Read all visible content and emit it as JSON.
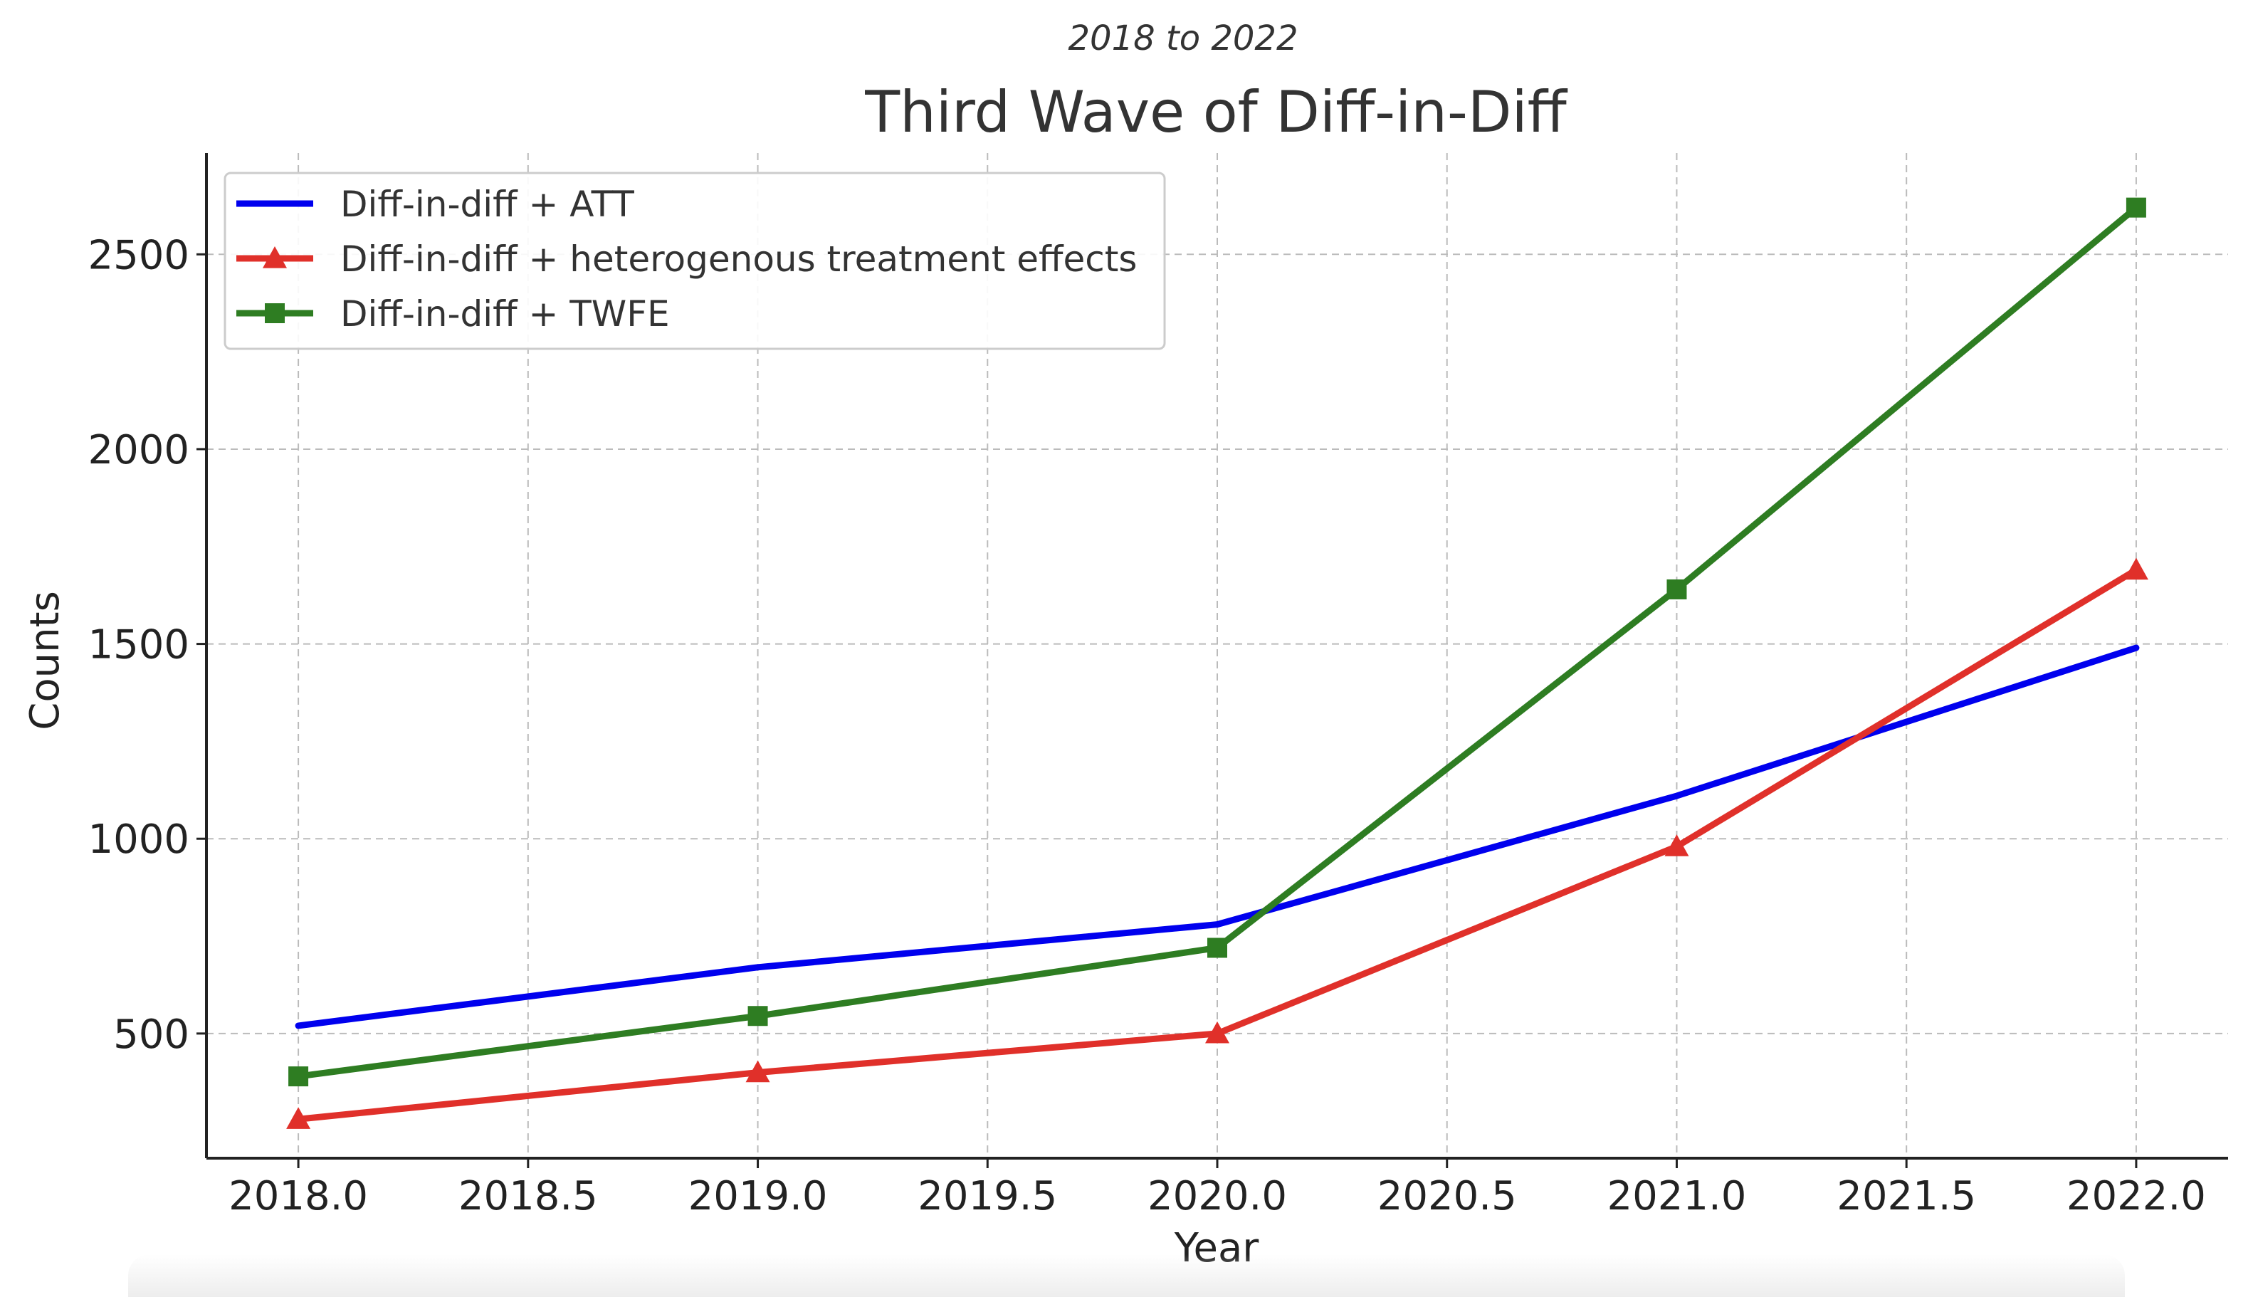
{
  "chart_data": {
    "type": "line",
    "subtitle": "2018 to 2022",
    "title": "Third Wave of Diff-in-Diff",
    "xlabel": "Year",
    "ylabel": "Counts",
    "x": [
      2018,
      2019,
      2020,
      2021,
      2022
    ],
    "xlim": [
      2017.8,
      2022.2
    ],
    "ylim": [
      180,
      2760
    ],
    "x_ticks": [
      "2018.0",
      "2018.5",
      "2019.0",
      "2019.5",
      "2020.0",
      "2020.5",
      "2021.0",
      "2021.5",
      "2022.0"
    ],
    "y_ticks": [
      "500",
      "1000",
      "1500",
      "2000",
      "2500"
    ],
    "grid": true,
    "legend_position": "upper-left",
    "series": [
      {
        "name": "Diff-in-diff + ATT",
        "values": [
          520,
          670,
          780,
          1110,
          1490
        ],
        "color": "#0000ee",
        "marker": "none"
      },
      {
        "name": "Diff-in-diff + heterogenous treatment effects",
        "values": [
          280,
          400,
          500,
          980,
          1690
        ],
        "color": "#e0302a",
        "marker": "triangle"
      },
      {
        "name": "Diff-in-diff + TWFE",
        "values": [
          390,
          545,
          720,
          1640,
          2620
        ],
        "color": "#2e7d22",
        "marker": "square"
      }
    ]
  }
}
